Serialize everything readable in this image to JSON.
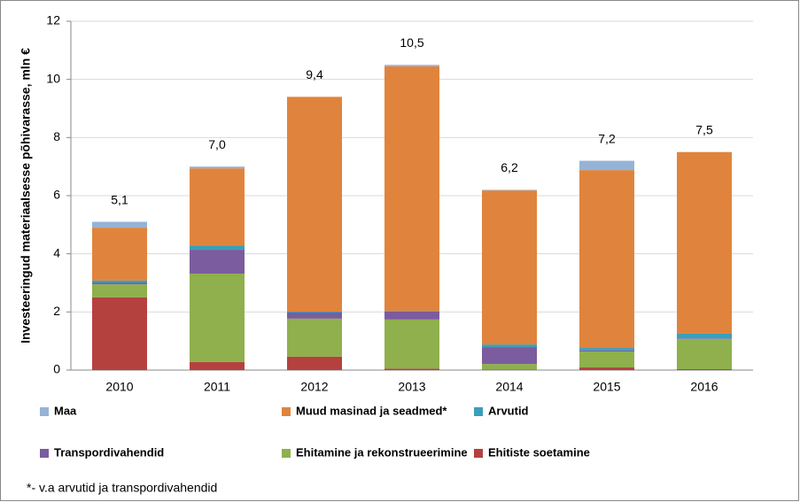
{
  "chart_data": {
    "type": "bar",
    "stacked": true,
    "y_axis_label": "Investeeringud materiaalsesse põhivarasse, mln €",
    "categories": [
      "2010",
      "2011",
      "2012",
      "2013",
      "2014",
      "2015",
      "2016"
    ],
    "series": [
      {
        "name": "Maa",
        "color": "#95b3d7",
        "values": [
          0.2,
          0.06,
          0.0,
          0.05,
          0.02,
          0.32,
          0.0
        ]
      },
      {
        "name": "Muud masinad ja seadmed*",
        "color": "#e0843d",
        "values": [
          1.82,
          2.65,
          7.39,
          8.42,
          5.3,
          6.12,
          6.25
        ]
      },
      {
        "name": "Arvutid",
        "color": "#3a9fba",
        "values": [
          0.08,
          0.15,
          0.03,
          0.02,
          0.09,
          0.08,
          0.16
        ]
      },
      {
        "name": "Transpordivahendid",
        "color": "#7b5c9e",
        "values": [
          0.05,
          0.82,
          0.21,
          0.27,
          0.58,
          0.04,
          0.02
        ]
      },
      {
        "name": "Ehitamine ja rekonstrueerimine",
        "color": "#8fb04c",
        "values": [
          0.45,
          3.04,
          1.31,
          1.69,
          0.19,
          0.55,
          1.04
        ]
      },
      {
        "name": "Ehitiste soetamine",
        "color": "#b5413f",
        "values": [
          2.5,
          0.28,
          0.46,
          0.05,
          0.02,
          0.09,
          0.03
        ]
      }
    ],
    "totals": [
      5.1,
      7.0,
      9.4,
      10.5,
      6.2,
      7.2,
      7.5
    ],
    "total_labels": [
      "5,1",
      "7,0",
      "9,4",
      "10,5",
      "6,2",
      "7,2",
      "7,5"
    ],
    "ylim": [
      0,
      12
    ],
    "yticks": [
      0,
      2,
      4,
      6,
      8,
      10,
      12
    ],
    "grid": true,
    "footnote": "*- v.a arvutid ja transpordivahendid"
  }
}
